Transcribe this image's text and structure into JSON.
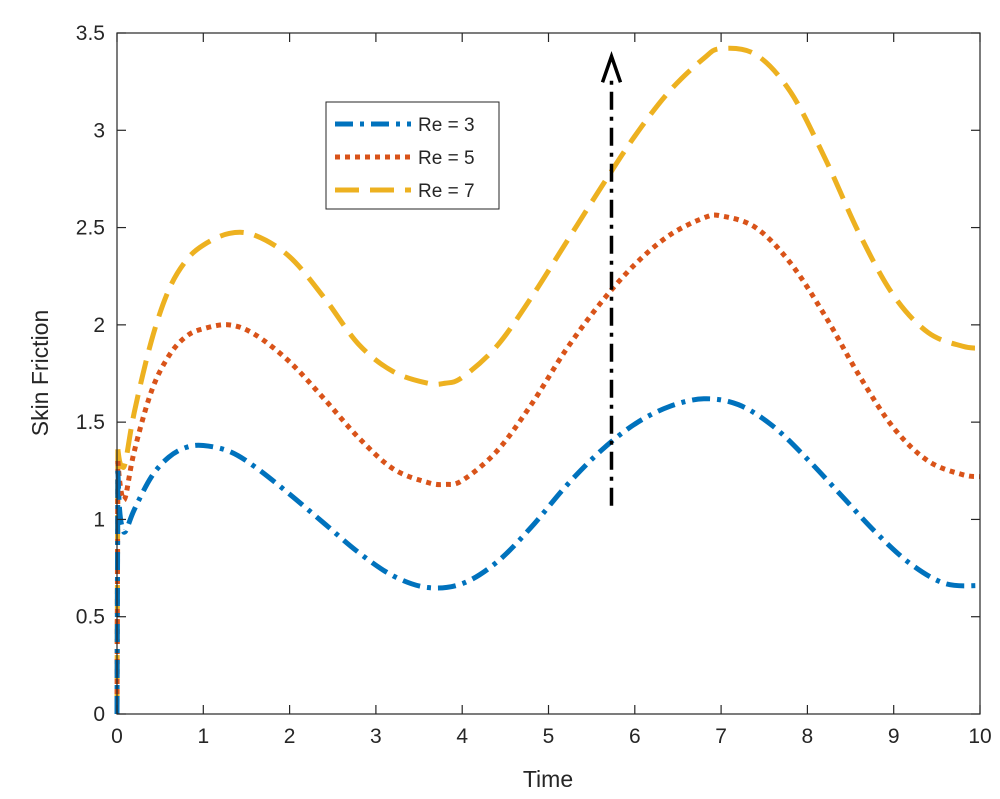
{
  "chart_data": {
    "type": "line",
    "title": "",
    "xlabel": "Time",
    "ylabel": "Skin Friction",
    "xlim": [
      0,
      10
    ],
    "ylim": [
      0,
      3.5
    ],
    "xticks": [
      0,
      1,
      2,
      3,
      4,
      5,
      6,
      7,
      8,
      9,
      10
    ],
    "yticks": [
      0,
      0.5,
      1,
      1.5,
      2,
      2.5,
      3,
      3.5
    ],
    "xtick_labels": [
      "0",
      "1",
      "2",
      "3",
      "4",
      "5",
      "6",
      "7",
      "8",
      "9",
      "10"
    ],
    "ytick_labels": [
      "0",
      "0.5",
      "1",
      "1.5",
      "2",
      "2.5",
      "3",
      "3.5"
    ],
    "grid": false,
    "legend_position": "upper-left-center",
    "series": [
      {
        "name": "Re = 3",
        "color": "#0072BD",
        "style": "dash-dot",
        "x": [
          0,
          0.01,
          0.03,
          0.06,
          0.1,
          0.2,
          0.4,
          0.6,
          0.8,
          1.0,
          1.3,
          1.6,
          2.0,
          2.4,
          2.8,
          3.2,
          3.6,
          4.0,
          4.4,
          4.8,
          5.2,
          5.6,
          6.0,
          6.4,
          6.8,
          7.2,
          7.6,
          8.0,
          8.4,
          8.8,
          9.2,
          9.6,
          10.0
        ],
        "y": [
          0,
          1.25,
          1.05,
          0.96,
          0.94,
          1.05,
          1.22,
          1.32,
          1.37,
          1.38,
          1.35,
          1.27,
          1.13,
          0.98,
          0.83,
          0.71,
          0.65,
          0.67,
          0.78,
          0.96,
          1.17,
          1.35,
          1.49,
          1.58,
          1.62,
          1.59,
          1.48,
          1.31,
          1.12,
          0.93,
          0.77,
          0.67,
          0.66
        ]
      },
      {
        "name": "Re = 5",
        "color": "#D95319",
        "style": "dotted",
        "x": [
          0,
          0.01,
          0.03,
          0.06,
          0.1,
          0.2,
          0.4,
          0.6,
          0.8,
          1.0,
          1.3,
          1.6,
          2.0,
          2.4,
          2.8,
          3.2,
          3.6,
          3.8,
          4.0,
          4.4,
          4.8,
          5.2,
          5.6,
          6.0,
          6.4,
          6.8,
          7.0,
          7.4,
          7.8,
          8.2,
          8.6,
          9.0,
          9.4,
          9.8,
          10.0
        ],
        "y": [
          0,
          1.3,
          1.2,
          1.12,
          1.12,
          1.35,
          1.66,
          1.84,
          1.94,
          1.98,
          2.0,
          1.95,
          1.81,
          1.62,
          1.42,
          1.26,
          1.19,
          1.18,
          1.2,
          1.35,
          1.59,
          1.87,
          2.11,
          2.31,
          2.46,
          2.55,
          2.56,
          2.5,
          2.32,
          2.05,
          1.74,
          1.47,
          1.3,
          1.23,
          1.22
        ]
      },
      {
        "name": "Re = 7",
        "color": "#EDB120",
        "style": "dashed",
        "x": [
          0,
          0.01,
          0.03,
          0.06,
          0.1,
          0.2,
          0.4,
          0.6,
          0.8,
          1.0,
          1.3,
          1.6,
          2.0,
          2.4,
          2.8,
          3.2,
          3.6,
          3.8,
          4.0,
          4.4,
          4.8,
          5.2,
          5.6,
          6.0,
          6.4,
          6.8,
          7.0,
          7.4,
          7.8,
          8.2,
          8.6,
          9.0,
          9.4,
          9.8,
          10.0
        ],
        "y": [
          0,
          1.36,
          1.3,
          1.27,
          1.3,
          1.55,
          1.92,
          2.18,
          2.33,
          2.41,
          2.47,
          2.46,
          2.35,
          2.14,
          1.9,
          1.76,
          1.7,
          1.7,
          1.73,
          1.89,
          2.14,
          2.42,
          2.7,
          2.97,
          3.2,
          3.37,
          3.42,
          3.39,
          3.2,
          2.86,
          2.47,
          2.15,
          1.96,
          1.89,
          1.88
        ]
      }
    ],
    "annotations": [
      {
        "type": "arrow",
        "color": "#000000",
        "style": "dash-dot",
        "from": [
          5.73,
          1.07
        ],
        "to": [
          5.73,
          3.38
        ]
      }
    ]
  }
}
